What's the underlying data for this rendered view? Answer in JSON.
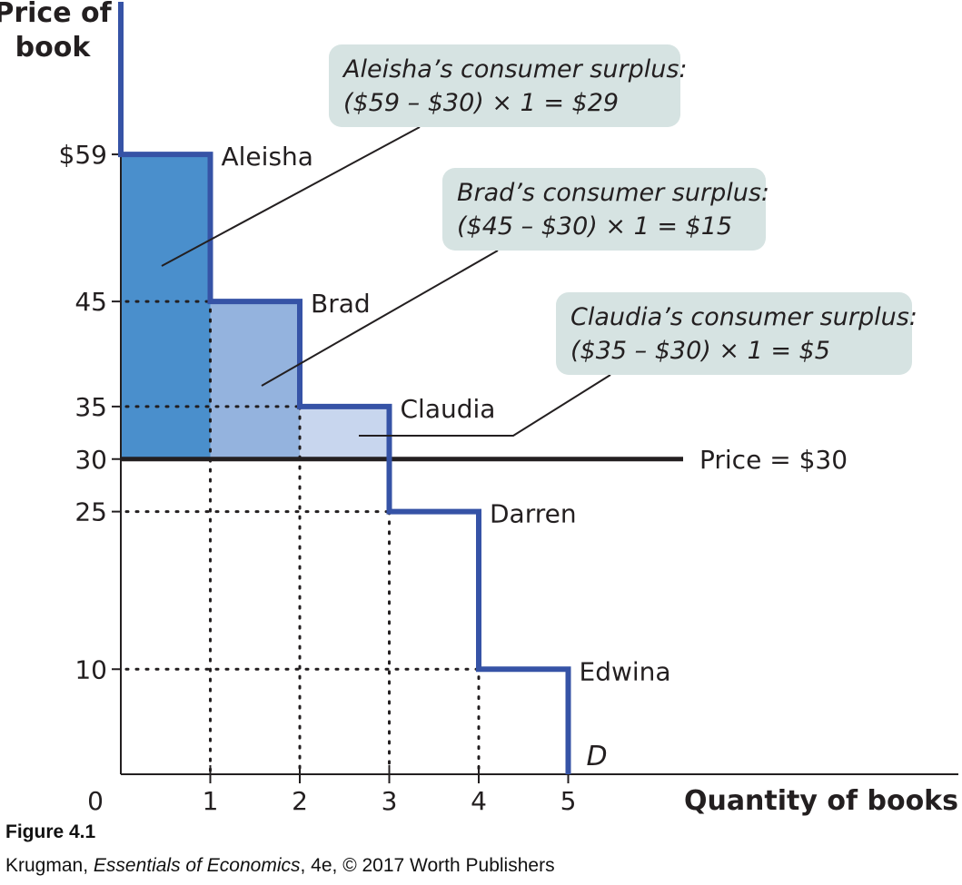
{
  "chart_data": {
    "type": "step",
    "title": "",
    "xlabel": "Quantity of books",
    "ylabel": "Price of book",
    "xlim": [
      0,
      5
    ],
    "ylim": [
      0,
      59
    ],
    "x_ticks": [
      "0",
      "1",
      "2",
      "3",
      "4",
      "5"
    ],
    "y_ticks": [
      {
        "value": 59,
        "label": "$59"
      },
      {
        "value": 45,
        "label": "45"
      },
      {
        "value": 35,
        "label": "35"
      },
      {
        "value": 30,
        "label": "30"
      },
      {
        "value": 25,
        "label": "25"
      },
      {
        "value": 10,
        "label": "10"
      }
    ],
    "demand_label": "D",
    "demand_steps": [
      {
        "name": "Aleisha",
        "willingness_to_pay": 59,
        "x_from": 0,
        "x_to": 1
      },
      {
        "name": "Brad",
        "willingness_to_pay": 45,
        "x_from": 1,
        "x_to": 2
      },
      {
        "name": "Claudia",
        "willingness_to_pay": 35,
        "x_from": 2,
        "x_to": 3
      },
      {
        "name": "Darren",
        "willingness_to_pay": 25,
        "x_from": 3,
        "x_to": 4
      },
      {
        "name": "Edwina",
        "willingness_to_pay": 10,
        "x_from": 4,
        "x_to": 5
      }
    ],
    "price_line": {
      "value": 30,
      "label": "Price = $30"
    },
    "surplus_areas": [
      {
        "buyer": "Aleisha",
        "from": 30,
        "to": 59,
        "color": "#4a8fcc",
        "callout_title": "Aleisha’s consumer surplus:",
        "callout_formula": "($59 – $30) × 1 = $29"
      },
      {
        "buyer": "Brad",
        "from": 30,
        "to": 45,
        "color": "#94b3de",
        "callout_title": "Brad’s consumer surplus:",
        "callout_formula": "($45 – $30) × 1 = $15"
      },
      {
        "buyer": "Claudia",
        "from": 30,
        "to": 35,
        "color": "#c8d6ee",
        "callout_title": "Claudia’s consumer surplus:",
        "callout_formula": "($35 – $30) × 1 = $5"
      }
    ],
    "colors": {
      "demand_curve": "#3653a6",
      "price_line": "#231f20",
      "callout_fill": "#d6e3e2",
      "axis": "#231f20"
    }
  },
  "caption": {
    "figure_title": "Figure 4.1",
    "credit_author": "Krugman, ",
    "credit_book": "Essentials of Economics",
    "credit_rest": ", 4e, © 2017 Worth Publishers"
  }
}
